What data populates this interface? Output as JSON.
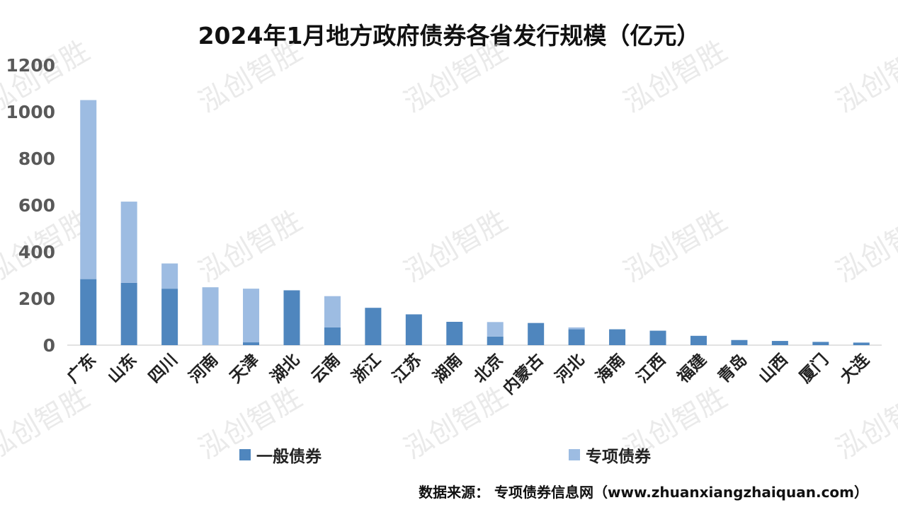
{
  "chart_data": {
    "type": "bar",
    "stacked": true,
    "title": "2024年1月地方政府债券各省发行规模（亿元）",
    "xlabel": "",
    "ylabel": "",
    "ylim": [
      0,
      1200
    ],
    "yticks": [
      0,
      200,
      400,
      600,
      800,
      1000,
      1200
    ],
    "categories": [
      "广东",
      "山东",
      "四川",
      "河南",
      "天津",
      "湖北",
      "云南",
      "浙江",
      "江苏",
      "湖南",
      "北京",
      "内蒙古",
      "河北",
      "海南",
      "江西",
      "福建",
      "青岛",
      "山西",
      "厦门",
      "大连"
    ],
    "series": [
      {
        "name": "一般债券",
        "color": "#4f86be",
        "values": [
          283,
          267,
          242,
          0,
          12,
          235,
          76,
          160,
          132,
          100,
          37,
          95,
          68,
          68,
          62,
          40,
          22,
          18,
          14,
          11
        ]
      },
      {
        "name": "专项债券",
        "color": "#9dbce2",
        "values": [
          767,
          348,
          108,
          248,
          230,
          0,
          134,
          0,
          0,
          0,
          62,
          0,
          8,
          0,
          0,
          0,
          0,
          0,
          0,
          0
        ]
      }
    ],
    "legend_position": "bottom",
    "grid": false
  },
  "watermark_text": "泓创智胜",
  "source_text": "数据来源：  专项债券信息网（www.zhuanxiangzhaiquan.com）"
}
